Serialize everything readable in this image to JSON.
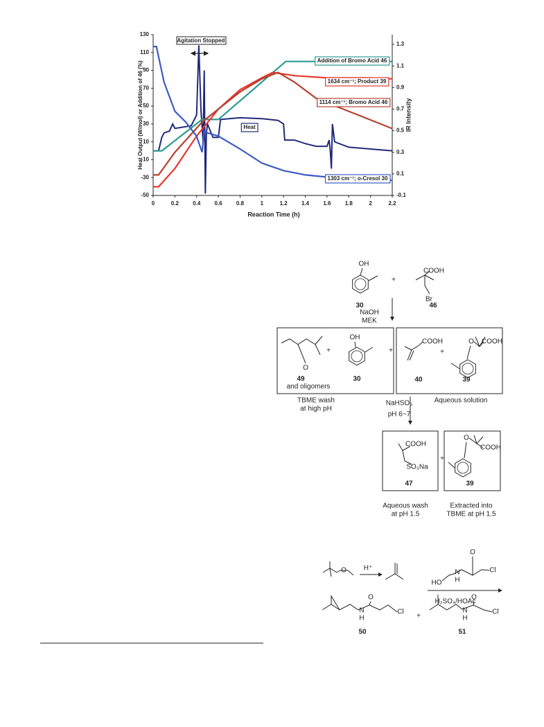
{
  "chart_data": {
    "type": "line",
    "xlabel": "Reaction Time (h)",
    "ylabel": "Heat Output (W/mol) or Addition of 46 (%)",
    "y2label": "IR Intensity",
    "annotations": [
      "Agitation Stopped"
    ],
    "xlim": [
      0,
      2.2
    ],
    "xticks": [
      0,
      0.2,
      0.4,
      0.6,
      0.8,
      1,
      1.2,
      1.4,
      1.6,
      1.8,
      2,
      2.2
    ],
    "ylim": [
      -50,
      130
    ],
    "yticks": [
      130,
      110,
      90,
      70,
      50,
      30,
      10,
      -10,
      -30,
      -50
    ],
    "y2lim": [
      -0.1,
      1.39
    ],
    "y2ticks": [
      1.3,
      1.1,
      0.9,
      0.7,
      0.5,
      0.3,
      0.1,
      -0.1
    ],
    "series": [
      {
        "name": "Heat",
        "color": "#1f2a78",
        "axis": "y",
        "x": [
          0,
          0.05,
          0.08,
          0.1,
          0.15,
          0.18,
          0.2,
          0.3,
          0.35,
          0.4,
          0.42,
          0.44,
          0.46,
          0.47,
          0.48,
          0.49,
          0.5,
          0.55,
          0.6,
          0.62,
          0.7,
          0.8,
          1.0,
          1.15,
          1.2,
          1.21,
          1.3,
          1.4,
          1.5,
          1.6,
          1.62,
          1.63,
          1.64,
          1.65,
          1.67,
          1.8,
          2.0,
          2.2
        ],
        "values": [
          0,
          0,
          15,
          20,
          22,
          30,
          25,
          27,
          28,
          40,
          118,
          45,
          10,
          90,
          -48,
          20,
          30,
          15,
          15,
          35,
          36,
          37,
          36,
          34,
          30,
          12,
          12,
          8,
          5,
          5,
          12,
          0,
          -20,
          30,
          10,
          4,
          2,
          0
        ]
      },
      {
        "name": "Addition of Bromo Acid 46",
        "color": "#2a9a8f",
        "axis": "y",
        "x": [
          0,
          0.08,
          0.45,
          0.6,
          1.22,
          2.2
        ],
        "values": [
          0,
          0,
          35,
          35,
          100,
          100
        ]
      },
      {
        "name": "1634 cm⁻¹; Product 39",
        "color": "#e8362c",
        "axis": "y2",
        "x": [
          0,
          0.05,
          0.2,
          0.4,
          0.6,
          0.8,
          1.0,
          1.1,
          1.3,
          1.6,
          2.0,
          2.2
        ],
        "values": [
          -0.02,
          -0.02,
          0.15,
          0.45,
          0.7,
          0.88,
          0.99,
          1.04,
          1.01,
          0.99,
          0.99,
          0.98
        ]
      },
      {
        "name": "1114 cm⁻¹; Bromo Acid 46",
        "color": "#b8402f",
        "axis": "y2",
        "x": [
          0,
          0.05,
          0.2,
          0.45,
          0.6,
          0.8,
          1.0,
          1.15,
          1.3,
          1.5,
          1.8,
          2.0,
          2.2
        ],
        "values": [
          0.09,
          0.09,
          0.3,
          0.58,
          0.7,
          0.86,
          0.98,
          1.04,
          0.95,
          0.8,
          0.68,
          0.6,
          0.52
        ]
      },
      {
        "name": "1303 cm⁻¹; o-Cresol 30",
        "color": "#3b5bc4",
        "axis": "y2",
        "x": [
          0,
          0.03,
          0.1,
          0.2,
          0.3,
          0.4,
          0.45,
          0.47,
          0.5,
          0.6,
          0.8,
          1.0,
          1.2,
          1.4,
          1.6,
          1.8,
          2.0,
          2.2
        ],
        "values": [
          1.28,
          1.28,
          0.95,
          0.68,
          0.58,
          0.45,
          0.3,
          0.5,
          0.48,
          0.45,
          0.33,
          0.2,
          0.13,
          0.09,
          0.07,
          0.055,
          0.05,
          0.04
        ]
      }
    ]
  },
  "scheme_1": {
    "labels": [
      "OH",
      "COOH",
      "Br",
      "30",
      "+",
      "46",
      "NaOH",
      "MEK",
      "O",
      "+",
      "OH",
      "49",
      "and oligomers",
      "30",
      "+",
      "COOH",
      "+",
      "O",
      "COOH",
      "40",
      "39",
      "TBME wash",
      "at high pH",
      "Aqueous solution",
      "NaHSO₃",
      "pH 6~7",
      "COOH",
      "SO₃Na",
      "47",
      "+",
      "O",
      "COOH",
      "39",
      "Aqueous wash",
      "at pH 1.5",
      "Extracted into",
      "TBME at pH 1.5"
    ]
  },
  "scheme_2": {
    "labels": [
      "O",
      "H⁺",
      "HO",
      "N",
      "H",
      "O",
      "Cl",
      "H₂SO₄/HOAc",
      "N",
      "H",
      "O",
      "Cl",
      "50",
      "+",
      "N",
      "H",
      "O",
      "Cl",
      "51"
    ]
  }
}
